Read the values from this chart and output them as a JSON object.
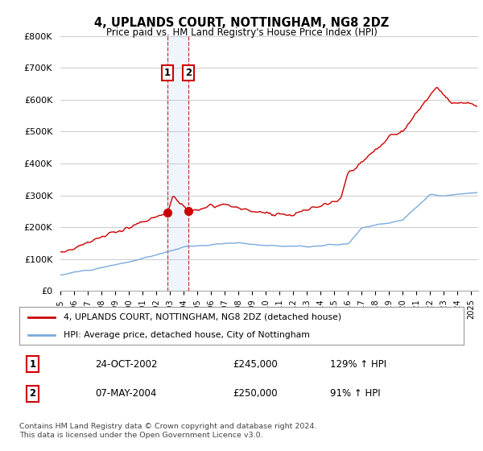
{
  "title": "4, UPLANDS COURT, NOTTINGHAM, NG8 2DZ",
  "subtitle": "Price paid vs. HM Land Registry's House Price Index (HPI)",
  "legend_line1": "4, UPLANDS COURT, NOTTINGHAM, NG8 2DZ (detached house)",
  "legend_line2": "HPI: Average price, detached house, City of Nottingham",
  "footnote": "Contains HM Land Registry data © Crown copyright and database right 2024.\nThis data is licensed under the Open Government Licence v3.0.",
  "sale1_date": "24-OCT-2002",
  "sale1_price": "£245,000",
  "sale1_hpi": "129% ↑ HPI",
  "sale1_year": 2002.81,
  "sale1_value": 245000,
  "sale2_date": "07-MAY-2004",
  "sale2_price": "£250,000",
  "sale2_hpi": "91% ↑ HPI",
  "sale2_year": 2004.35,
  "sale2_value": 250000,
  "red_color": "#cc0000",
  "blue_color": "#7aaadd",
  "background_color": "#ffffff",
  "grid_color": "#cccccc",
  "ylim": [
    0,
    800000
  ],
  "xlim_start": 1995.0,
  "xlim_end": 2025.5
}
